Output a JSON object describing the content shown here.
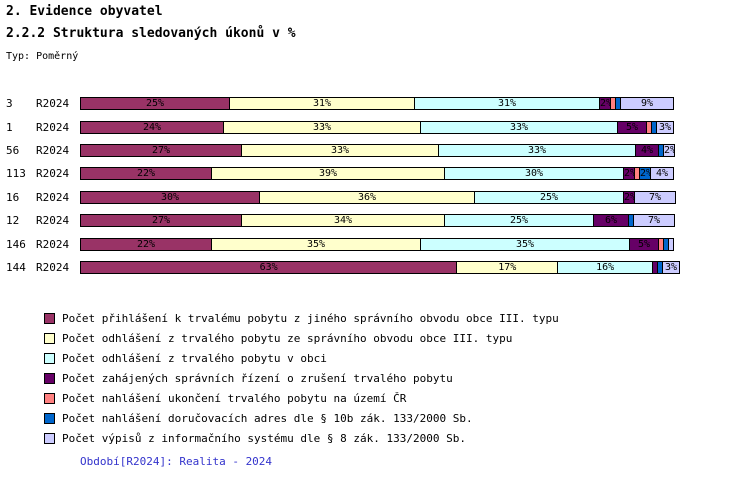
{
  "header": {
    "title1": "2. Evidence obyvatel",
    "title2": "2.2.2 Struktura sledovaných úkonů v %",
    "type_label": "Typ: Poměrný"
  },
  "chart_data": {
    "type": "bar",
    "orientation": "horizontal",
    "stacked": true,
    "unit": "%",
    "xlim": [
      0,
      100
    ],
    "categories": [
      "3",
      "1",
      "56",
      "113",
      "16",
      "12",
      "146",
      "144"
    ],
    "period_label": "R2024",
    "value_label_rule": "percent shown inside segment when segment >= 2%",
    "series": [
      {
        "name": "Počet přihlášení k trvalému pobytu z jiného správního obvodu obce III. typu",
        "color": "#993366",
        "values": [
          25,
          24,
          27,
          22,
          30,
          27,
          22,
          63
        ]
      },
      {
        "name": "Počet odhlášení z trvalého pobytu ze správního obvodu obce III. typu",
        "color": "#FFFFCC",
        "values": [
          31,
          33,
          33,
          39,
          36,
          34,
          35,
          17
        ]
      },
      {
        "name": "Počet odhlášení z trvalého pobytu v obci",
        "color": "#CCFFFF",
        "values": [
          31,
          33,
          33,
          30,
          25,
          25,
          35,
          16
        ]
      },
      {
        "name": "Počet zahájených správních řízení o zrušení trvalého pobytu",
        "color": "#660066",
        "values": [
          2,
          5,
          4,
          2,
          2,
          6,
          5,
          1
        ]
      },
      {
        "name": "Počet nahlášení ukončení trvalého pobytu na území ČR",
        "color": "#FF8080",
        "values": [
          1,
          1,
          0,
          1,
          0,
          0,
          1,
          0
        ]
      },
      {
        "name": "Počet nahlášení doručovacích adres dle § 10b zák. 133/2000 Sb.",
        "color": "#0066CC",
        "values": [
          1,
          1,
          1,
          2,
          0,
          1,
          1,
          1
        ]
      },
      {
        "name": "Počet výpisů z informačního systému dle § 8 zák. 133/2000 Sb.",
        "color": "#CCCCFF",
        "values": [
          9,
          3,
          2,
          4,
          7,
          7,
          1,
          3
        ]
      }
    ],
    "legend_position": "bottom-left"
  },
  "footer": {
    "period_note": "Období[R2024]: Realita - 2024",
    "color": "#3333CC"
  }
}
